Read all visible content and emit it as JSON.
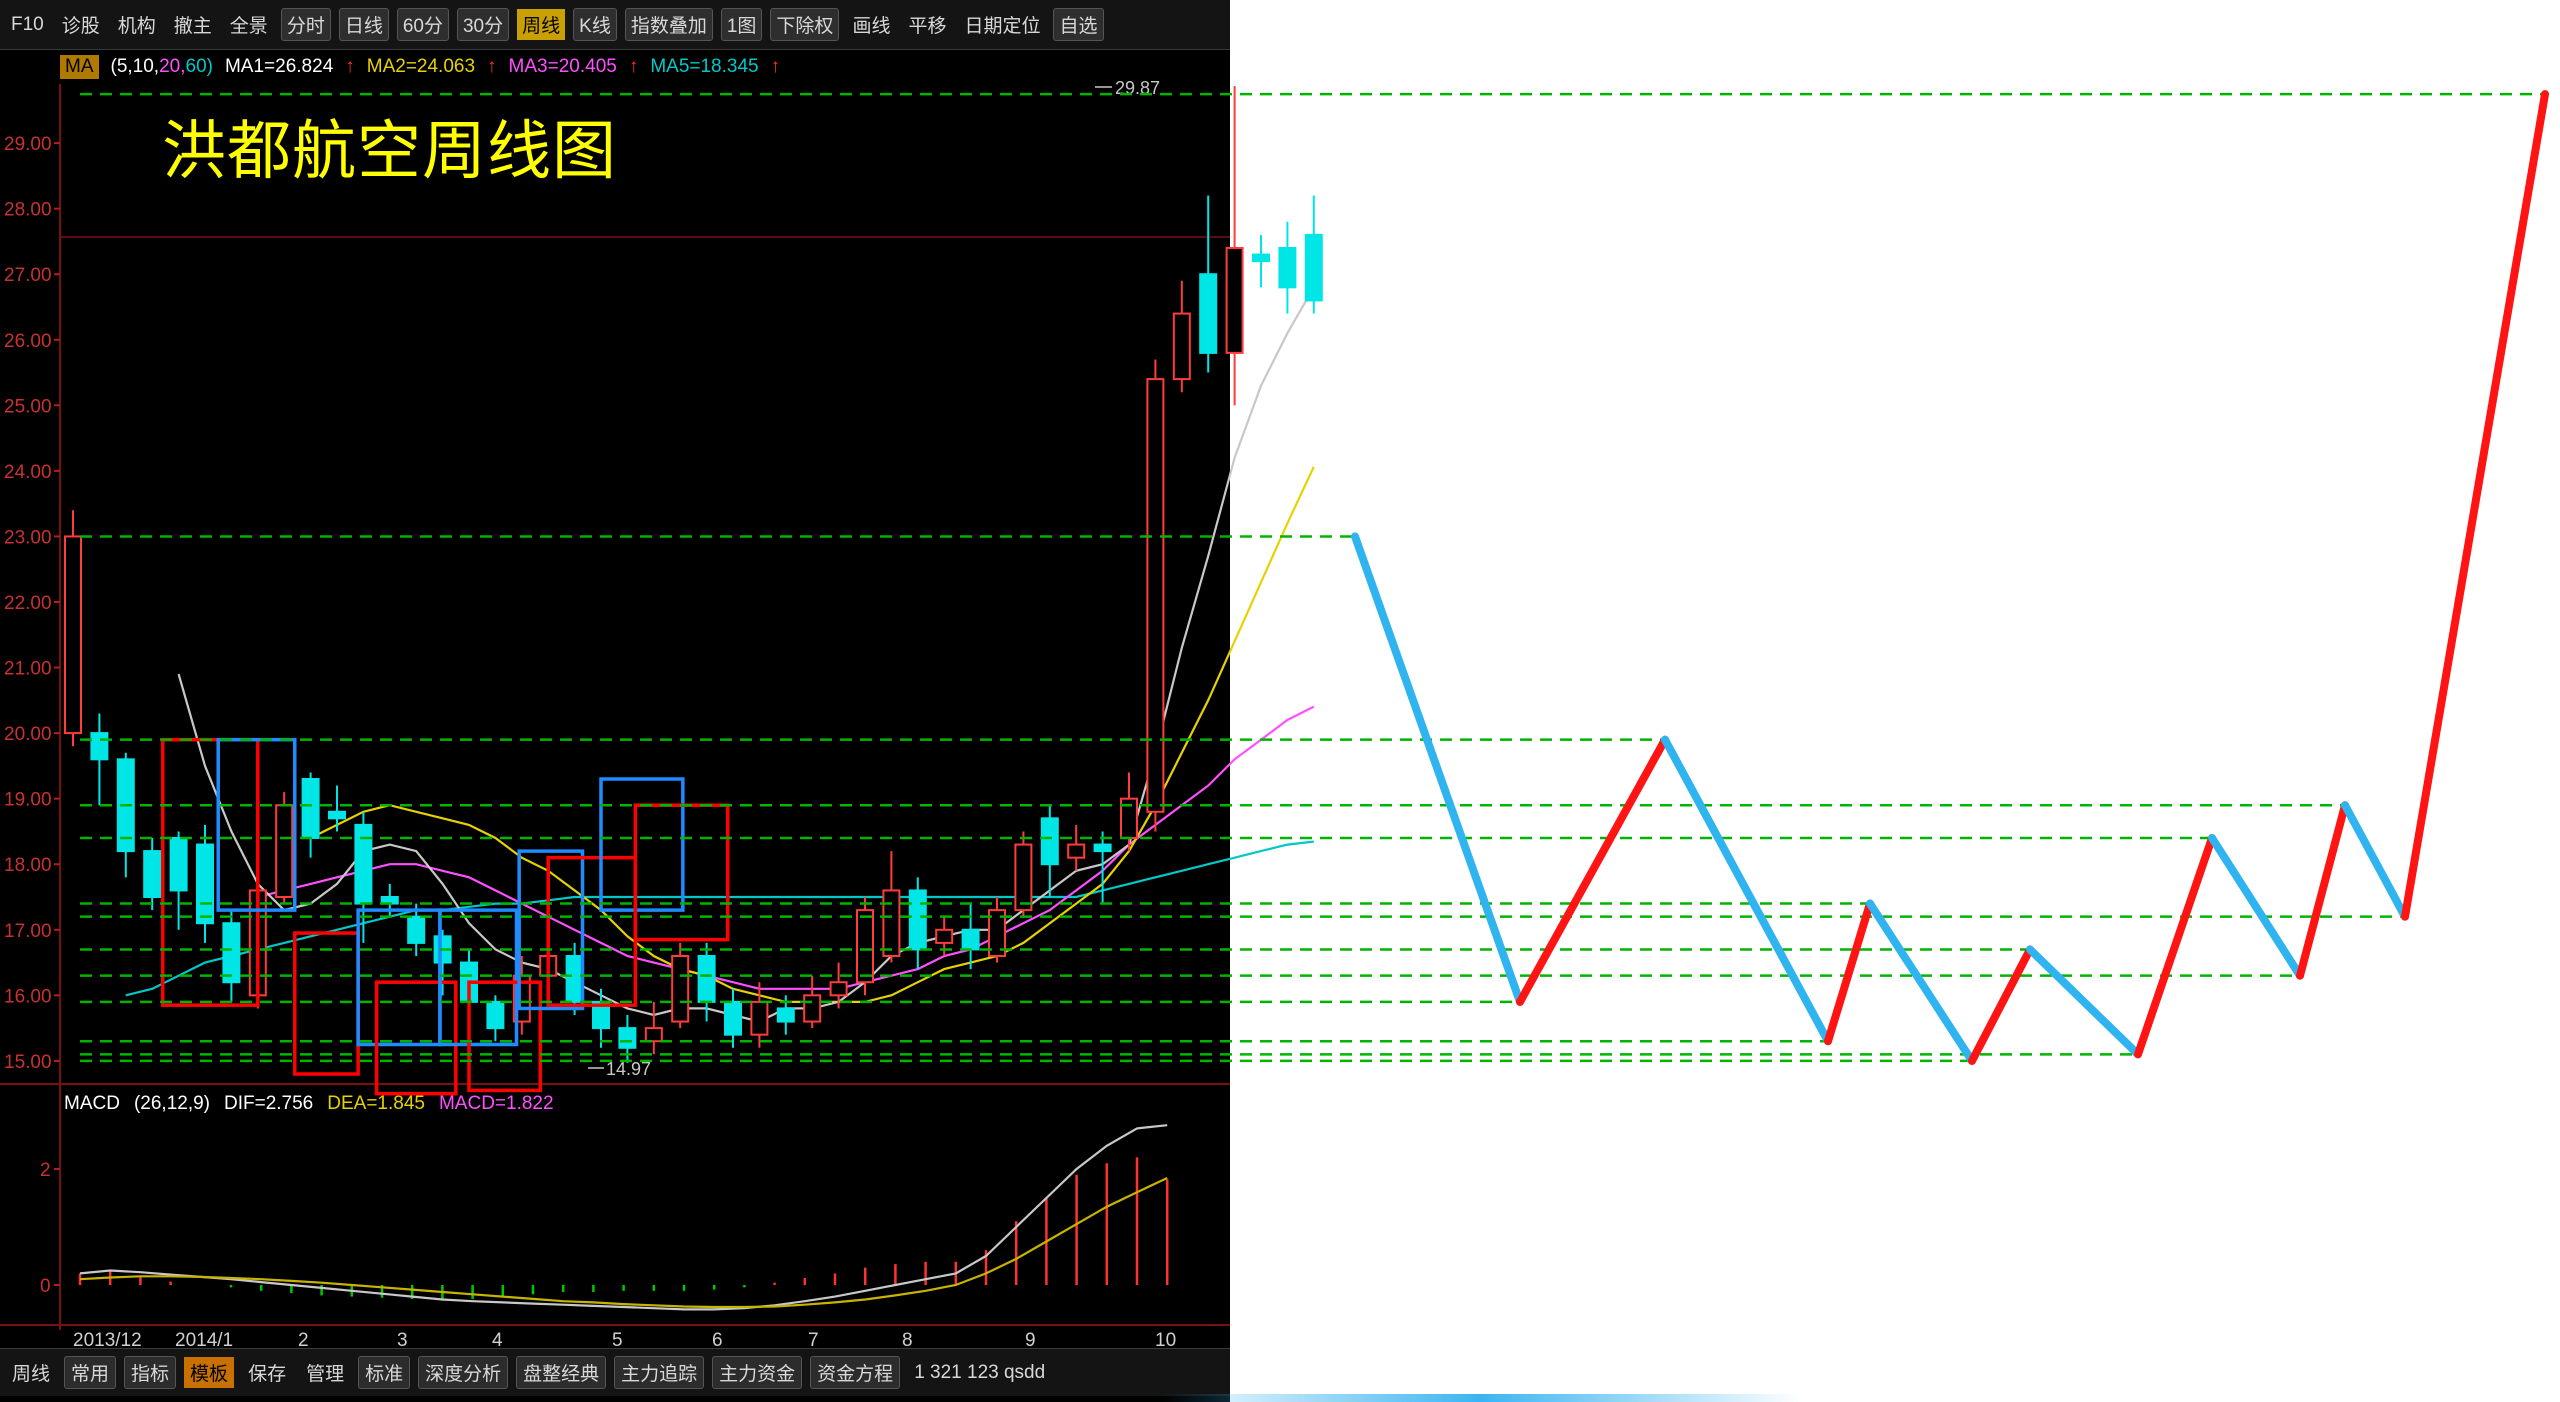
{
  "toolbar_top": {
    "items": [
      {
        "label": "F10",
        "style": "plain"
      },
      {
        "label": "诊股",
        "style": "plain"
      },
      {
        "label": "机构",
        "style": "plain"
      },
      {
        "label": "撤主",
        "style": "plain"
      },
      {
        "label": "全景",
        "style": "plain"
      },
      {
        "label": "分时",
        "style": "btn"
      },
      {
        "label": "日线",
        "style": "btn"
      },
      {
        "label": "60分",
        "style": "btn"
      },
      {
        "label": "30分",
        "style": "btn"
      },
      {
        "label": "周线",
        "style": "active"
      },
      {
        "label": "K线",
        "style": "btn"
      },
      {
        "label": "指数叠加",
        "style": "btn"
      },
      {
        "label": "1图",
        "style": "btn"
      },
      {
        "label": "下除权",
        "style": "btn"
      },
      {
        "label": "画线",
        "style": "plain"
      },
      {
        "label": "平移",
        "style": "plain"
      },
      {
        "label": "日期定位",
        "style": "plain"
      },
      {
        "label": "自选",
        "style": "btn"
      }
    ]
  },
  "ma_bar": {
    "indicator": "MA",
    "params_prefix": "(5,10,",
    "params_mid": "20,",
    "params_end": "60)",
    "ma1": "MA1=26.824",
    "ma2": "MA2=24.063",
    "ma3": "MA3=20.405",
    "ma5": "MA5=18.345",
    "arrow": "↑"
  },
  "chart_title": "洪都航空周线图",
  "macd_bar": {
    "indicator": "MACD",
    "params": "(26,12,9)",
    "dif": "DIF=2.756",
    "dea": "DEA=1.845",
    "macd": "MACD=1.822"
  },
  "bottom_bar": {
    "items": [
      {
        "label": "周线",
        "style": "plain"
      },
      {
        "label": "常用",
        "style": "btn"
      },
      {
        "label": "指标",
        "style": "btn"
      },
      {
        "label": "模板",
        "style": "active"
      },
      {
        "label": "保存",
        "style": "plain"
      },
      {
        "label": "管理",
        "style": "plain"
      },
      {
        "label": "标准",
        "style": "btn"
      },
      {
        "label": "深度分析",
        "style": "btn"
      },
      {
        "label": "盘整经典",
        "style": "btn"
      },
      {
        "label": "主力追踪",
        "style": "btn"
      },
      {
        "label": "主力资金",
        "style": "btn"
      },
      {
        "label": "资金方程",
        "style": "btn"
      },
      {
        "label": "1 321 123 qsdd",
        "style": "plain"
      }
    ]
  },
  "colors": {
    "up_candle": "#ff3c3c",
    "down_candle": "#00e6e6",
    "ma1": "#c8c8c8",
    "ma2": "#e6d200",
    "ma3": "#ff50ff",
    "ma5": "#00c8c8",
    "red_box": "#ff0000",
    "blue_box": "#1e8cff",
    "level_line": "#00b400",
    "zigzag_up": "#ff1414",
    "zigzag_down": "#30b4f0"
  },
  "chart_data": [
    {
      "type": "candlestick",
      "title": "洪都航空周线图",
      "price_axis": {
        "ticks": [
          "29.00",
          "28.00",
          "27.00",
          "26.00",
          "25.00",
          "24.00",
          "23.00",
          "22.00",
          "21.00",
          "20.00",
          "19.00",
          "18.00",
          "17.00",
          "16.00",
          "15.00"
        ],
        "range": [
          14.8,
          30.1
        ]
      },
      "x_axis_labels": [
        "2013/12",
        "2014/1",
        "2",
        "3",
        "4",
        "5",
        "6",
        "7",
        "8",
        "9",
        "10"
      ],
      "annotations": {
        "high": "29.87",
        "low": "14.97"
      },
      "candles": [
        {
          "o": 20.0,
          "c": 23.0,
          "h": 23.4,
          "l": 19.8
        },
        {
          "o": 20.0,
          "c": 19.6,
          "h": 20.3,
          "l": 18.9
        },
        {
          "o": 19.6,
          "c": 18.2,
          "h": 19.7,
          "l": 17.8
        },
        {
          "o": 18.2,
          "c": 17.5,
          "h": 18.4,
          "l": 17.3
        },
        {
          "o": 18.4,
          "c": 17.6,
          "h": 18.5,
          "l": 17.0
        },
        {
          "o": 18.3,
          "c": 17.1,
          "h": 18.6,
          "l": 16.8
        },
        {
          "o": 17.1,
          "c": 16.2,
          "h": 17.3,
          "l": 15.9
        },
        {
          "o": 16.0,
          "c": 17.6,
          "h": 17.8,
          "l": 15.8
        },
        {
          "o": 17.5,
          "c": 18.9,
          "h": 19.1,
          "l": 17.4
        },
        {
          "o": 19.3,
          "c": 18.4,
          "h": 19.4,
          "l": 18.1
        },
        {
          "o": 18.8,
          "c": 18.7,
          "h": 19.2,
          "l": 18.5
        },
        {
          "o": 18.6,
          "c": 17.4,
          "h": 18.8,
          "l": 16.8
        },
        {
          "o": 17.5,
          "c": 17.4,
          "h": 17.7,
          "l": 17.2
        },
        {
          "o": 17.2,
          "c": 16.8,
          "h": 17.4,
          "l": 16.6
        },
        {
          "o": 16.9,
          "c": 16.5,
          "h": 17.0,
          "l": 16.0
        },
        {
          "o": 16.5,
          "c": 15.9,
          "h": 16.7,
          "l": 15.6
        },
        {
          "o": 15.9,
          "c": 15.5,
          "h": 16.0,
          "l": 15.3
        },
        {
          "o": 15.6,
          "c": 16.3,
          "h": 16.6,
          "l": 15.4
        },
        {
          "o": 16.3,
          "c": 16.6,
          "h": 16.9,
          "l": 16.1
        },
        {
          "o": 16.6,
          "c": 15.9,
          "h": 16.8,
          "l": 15.7
        },
        {
          "o": 15.9,
          "c": 15.5,
          "h": 16.1,
          "l": 15.2
        },
        {
          "o": 15.5,
          "c": 15.2,
          "h": 15.7,
          "l": 14.97
        },
        {
          "o": 15.3,
          "c": 15.5,
          "h": 15.9,
          "l": 15.1
        },
        {
          "o": 15.6,
          "c": 16.6,
          "h": 16.8,
          "l": 15.5
        },
        {
          "o": 16.6,
          "c": 15.9,
          "h": 16.8,
          "l": 15.6
        },
        {
          "o": 15.9,
          "c": 15.4,
          "h": 16.1,
          "l": 15.2
        },
        {
          "o": 15.4,
          "c": 15.9,
          "h": 16.2,
          "l": 15.2
        },
        {
          "o": 15.8,
          "c": 15.6,
          "h": 16.0,
          "l": 15.4
        },
        {
          "o": 15.6,
          "c": 16.0,
          "h": 16.3,
          "l": 15.5
        },
        {
          "o": 16.0,
          "c": 16.2,
          "h": 16.5,
          "l": 15.8
        },
        {
          "o": 16.2,
          "c": 17.3,
          "h": 17.5,
          "l": 16.0
        },
        {
          "o": 16.6,
          "c": 17.6,
          "h": 18.2,
          "l": 16.5
        },
        {
          "o": 17.6,
          "c": 16.7,
          "h": 17.8,
          "l": 16.4
        },
        {
          "o": 16.8,
          "c": 17.0,
          "h": 17.2,
          "l": 16.6
        },
        {
          "o": 17.0,
          "c": 16.7,
          "h": 17.4,
          "l": 16.4
        },
        {
          "o": 16.6,
          "c": 17.3,
          "h": 17.5,
          "l": 16.5
        },
        {
          "o": 17.3,
          "c": 18.3,
          "h": 18.5,
          "l": 17.2
        },
        {
          "o": 18.7,
          "c": 18.0,
          "h": 18.9,
          "l": 17.5
        },
        {
          "o": 18.1,
          "c": 18.3,
          "h": 18.6,
          "l": 17.9
        },
        {
          "o": 18.3,
          "c": 18.2,
          "h": 18.5,
          "l": 17.4
        },
        {
          "o": 18.4,
          "c": 19.0,
          "h": 19.4,
          "l": 18.2
        },
        {
          "o": 18.8,
          "c": 25.4,
          "h": 25.7,
          "l": 18.5
        },
        {
          "o": 25.4,
          "c": 26.4,
          "h": 26.9,
          "l": 25.2
        },
        {
          "o": 27.0,
          "c": 25.8,
          "h": 28.2,
          "l": 25.5
        },
        {
          "o": 25.8,
          "c": 27.4,
          "h": 29.87,
          "l": 25.0
        },
        {
          "o": 27.3,
          "c": 27.2,
          "h": 27.6,
          "l": 26.8
        },
        {
          "o": 27.4,
          "c": 26.8,
          "h": 27.8,
          "l": 26.4
        },
        {
          "o": 27.6,
          "c": 26.6,
          "h": 28.2,
          "l": 26.4
        }
      ],
      "ma_series": {
        "ma1": [
          null,
          null,
          null,
          null,
          20.9,
          19.5,
          18.5,
          17.7,
          17.3,
          17.4,
          17.7,
          18.2,
          18.3,
          18.2,
          17.7,
          17.1,
          16.7,
          16.5,
          16.4,
          16.2,
          16.0,
          15.8,
          15.7,
          15.8,
          15.8,
          15.7,
          15.6,
          15.8,
          15.8,
          15.9,
          16.2,
          16.6,
          16.8,
          16.9,
          17.0,
          17.0,
          17.3,
          17.6,
          17.9,
          18.0,
          18.3,
          19.7,
          21.3,
          22.7,
          24.2,
          25.3,
          26.1,
          26.8
        ],
        "ma2": [
          null,
          null,
          null,
          null,
          null,
          null,
          null,
          null,
          null,
          18.4,
          18.6,
          18.8,
          18.9,
          18.8,
          18.7,
          18.6,
          18.4,
          18.1,
          17.9,
          17.6,
          17.3,
          16.9,
          16.6,
          16.4,
          16.3,
          16.1,
          16.0,
          15.9,
          15.9,
          15.9,
          15.9,
          16.0,
          16.2,
          16.4,
          16.5,
          16.6,
          16.8,
          17.1,
          17.4,
          17.7,
          18.2,
          18.9,
          19.7,
          20.5,
          21.4,
          22.3,
          23.2,
          24.063
        ],
        "ma3": [
          null,
          null,
          null,
          null,
          null,
          null,
          null,
          17.5,
          17.6,
          17.7,
          17.8,
          17.9,
          18.0,
          18.0,
          17.9,
          17.8,
          17.6,
          17.4,
          17.2,
          17.0,
          16.8,
          16.6,
          16.5,
          16.4,
          16.3,
          16.2,
          16.1,
          16.1,
          16.1,
          16.1,
          16.2,
          16.3,
          16.4,
          16.6,
          16.7,
          16.9,
          17.1,
          17.3,
          17.6,
          17.9,
          18.3,
          18.6,
          18.9,
          19.2,
          19.6,
          19.9,
          20.2,
          20.405
        ],
        "ma5": [
          null,
          null,
          16.0,
          16.1,
          16.3,
          16.5,
          16.6,
          16.7,
          16.8,
          16.9,
          17.0,
          17.1,
          17.2,
          17.3,
          17.3,
          17.35,
          17.4,
          17.4,
          17.45,
          17.5,
          17.5,
          17.5,
          17.5,
          17.5,
          17.5,
          17.5,
          17.5,
          17.5,
          17.5,
          17.5,
          17.5,
          17.5,
          17.5,
          17.5,
          17.5,
          17.5,
          17.5,
          17.5,
          17.5,
          17.6,
          17.7,
          17.8,
          17.9,
          18.0,
          18.1,
          18.2,
          18.3,
          18.345
        ]
      }
    },
    {
      "type": "line",
      "title": "MACD",
      "y_ticks": [
        "2",
        "0"
      ],
      "series": [
        {
          "name": "DIF",
          "values": [
            0.2,
            0.25,
            0.22,
            0.18,
            0.14,
            0.1,
            0.05,
            0.0,
            -0.05,
            -0.1,
            -0.15,
            -0.2,
            -0.25,
            -0.28,
            -0.3,
            -0.32,
            -0.34,
            -0.36,
            -0.38,
            -0.4,
            -0.42,
            -0.42,
            -0.4,
            -0.35,
            -0.28,
            -0.2,
            -0.1,
            0.0,
            0.1,
            0.2,
            0.5,
            1.0,
            1.5,
            2.0,
            2.4,
            2.7,
            2.756
          ]
        },
        {
          "name": "DEA",
          "values": [
            0.1,
            0.13,
            0.15,
            0.15,
            0.14,
            0.12,
            0.1,
            0.07,
            0.04,
            0.0,
            -0.04,
            -0.08,
            -0.12,
            -0.16,
            -0.2,
            -0.24,
            -0.28,
            -0.3,
            -0.33,
            -0.35,
            -0.37,
            -0.38,
            -0.38,
            -0.37,
            -0.34,
            -0.3,
            -0.25,
            -0.18,
            -0.1,
            0.0,
            0.2,
            0.45,
            0.75,
            1.05,
            1.35,
            1.6,
            1.845
          ]
        }
      ],
      "histogram": [
        0.2,
        0.24,
        0.14,
        0.06,
        0.0,
        -0.04,
        -0.1,
        -0.14,
        -0.18,
        -0.2,
        -0.22,
        -0.24,
        -0.26,
        -0.24,
        -0.2,
        -0.16,
        -0.12,
        -0.12,
        -0.1,
        -0.1,
        -0.1,
        -0.08,
        -0.04,
        0.04,
        0.12,
        0.2,
        0.3,
        0.36,
        0.4,
        0.4,
        0.6,
        1.1,
        1.5,
        1.9,
        2.1,
        2.2,
        1.822
      ]
    },
    {
      "type": "line",
      "title": "",
      "series": [
        {
          "name": "",
          "values": [
            23.0,
            15.9,
            19.9,
            15.3,
            17.4,
            15.0,
            16.7,
            15.1,
            18.4,
            16.3,
            18.9,
            17.2,
            29.87
          ]
        }
      ],
      "segment_colors": [
        "down",
        "up",
        "down",
        "up",
        "down",
        "up",
        "down",
        "up",
        "down",
        "up",
        "down",
        "up"
      ]
    }
  ]
}
